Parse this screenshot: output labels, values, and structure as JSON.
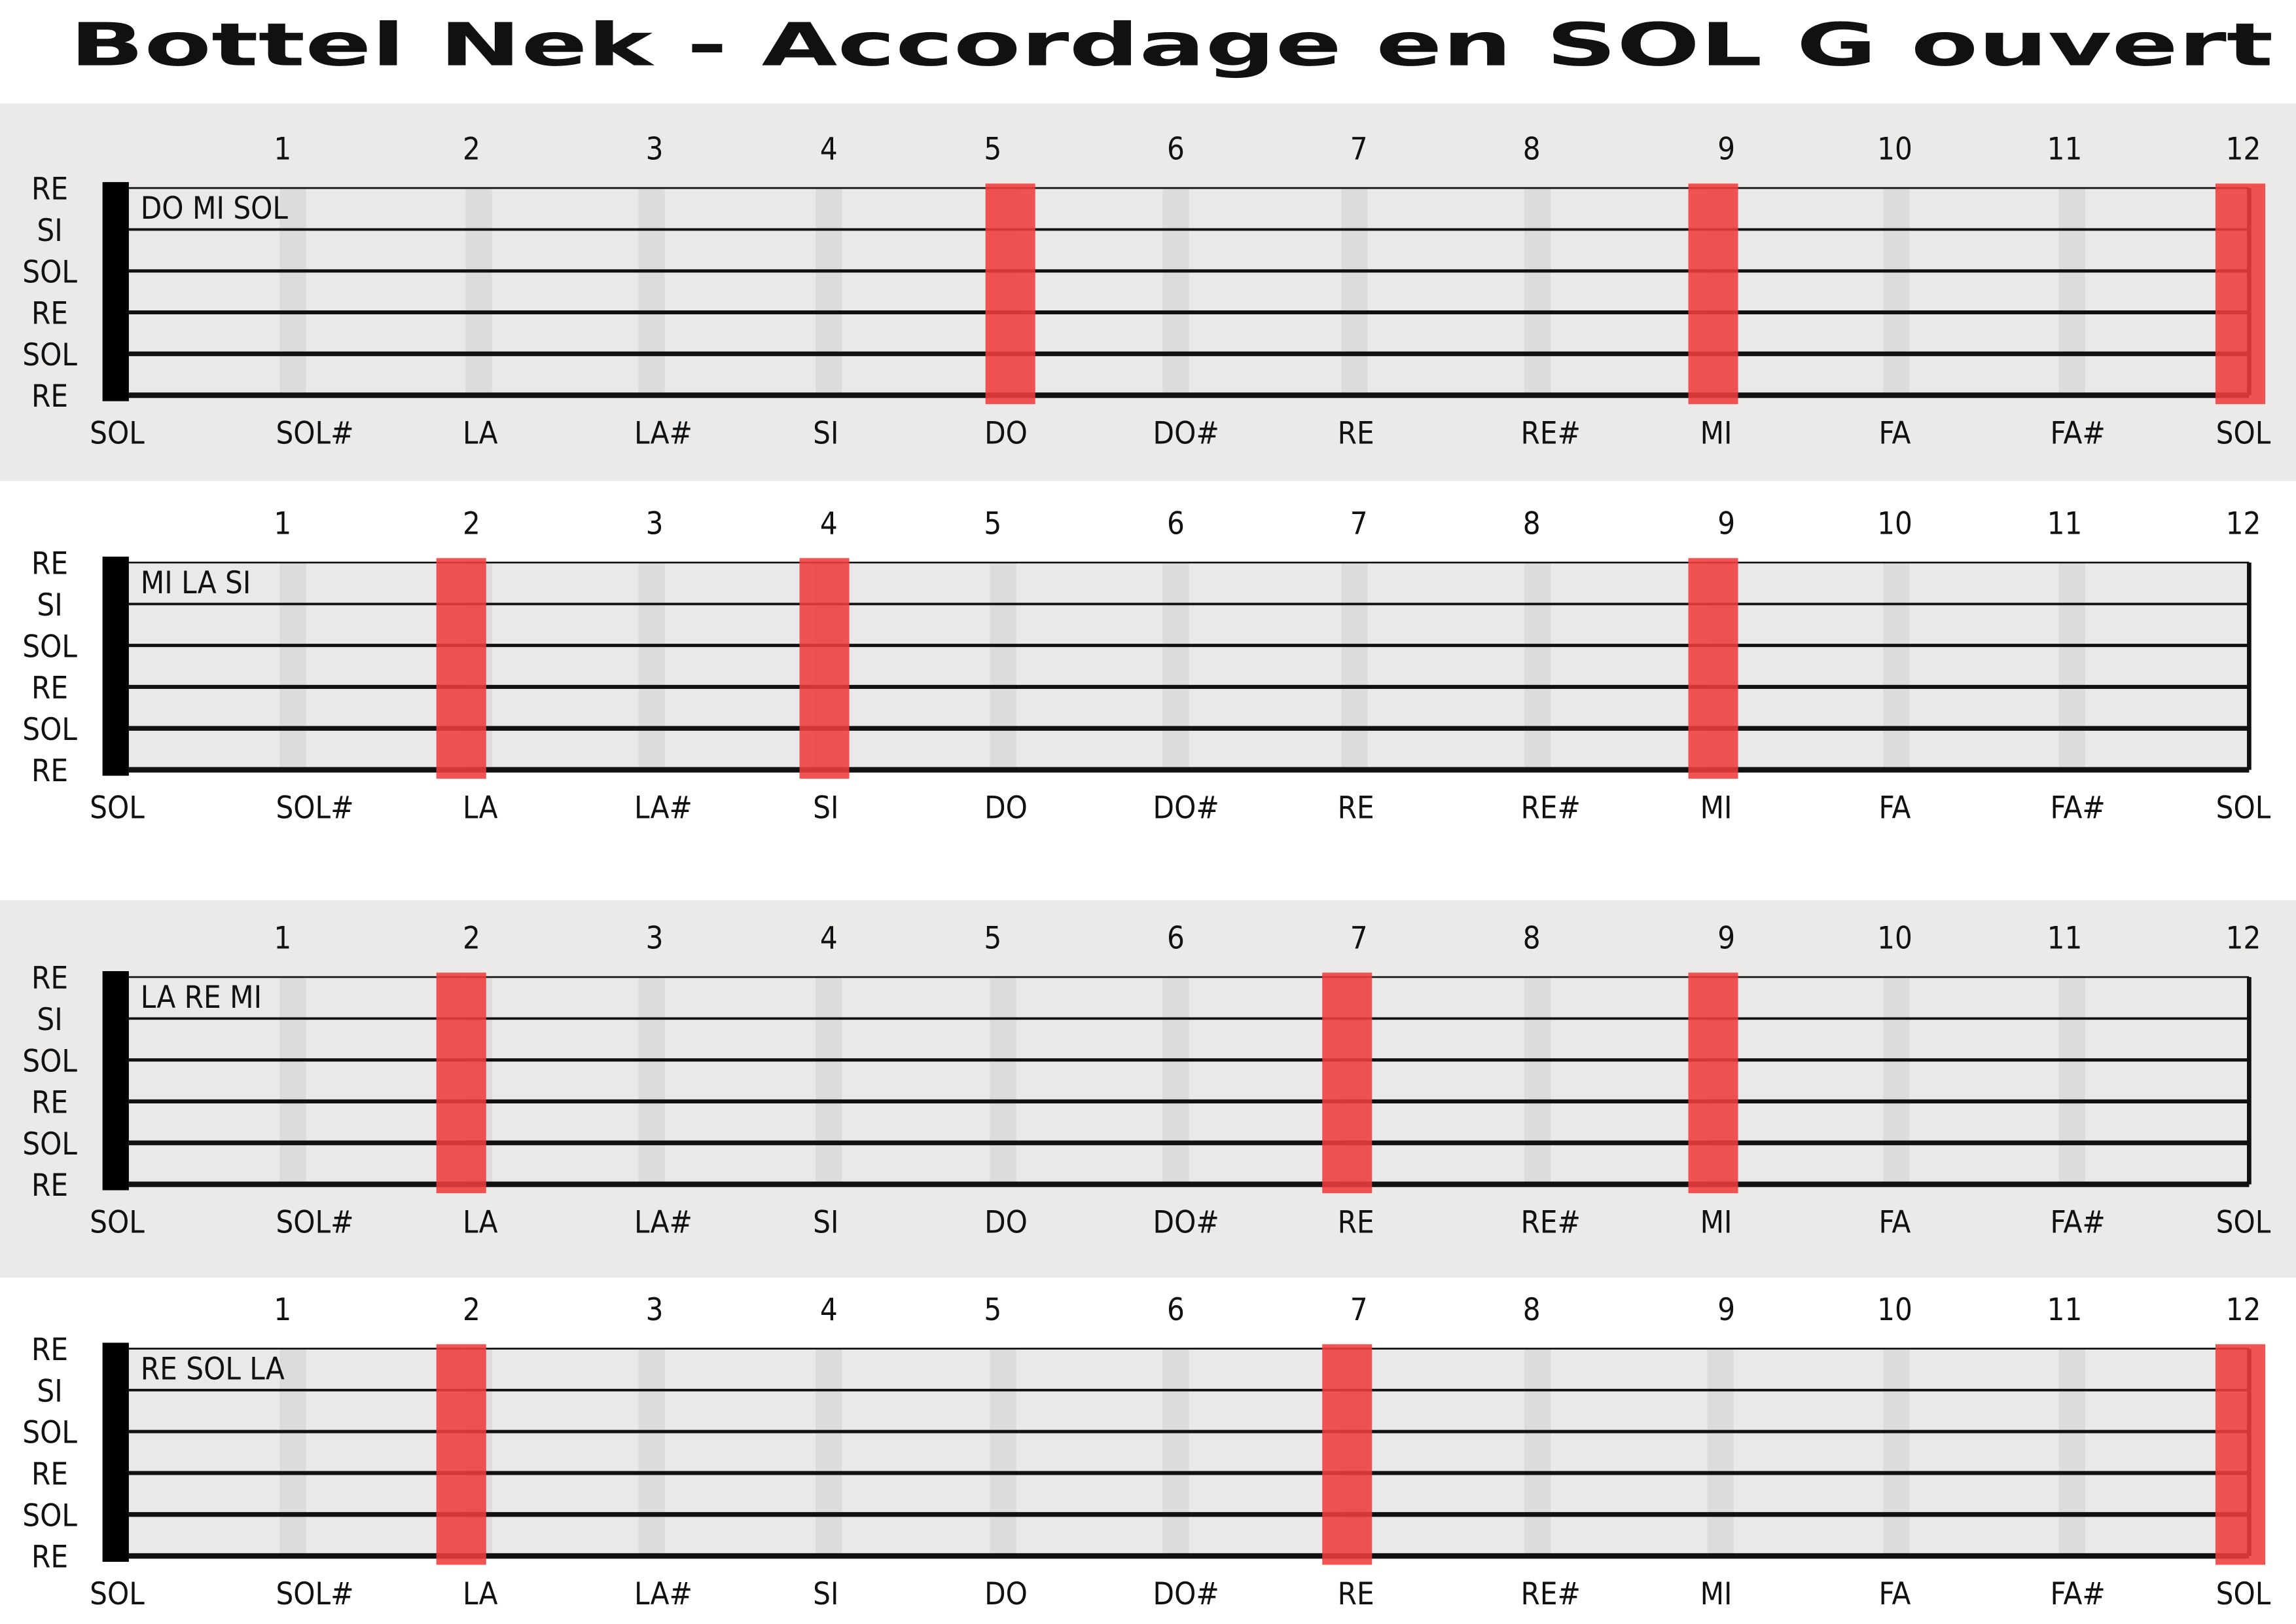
{
  "title": "Bottel Nek - Accordage en SOL G ouvert",
  "frets": [
    "1",
    "2",
    "3",
    "4",
    "5",
    "6",
    "7",
    "8",
    "9",
    "10",
    "11",
    "12"
  ],
  "strings": [
    "RE",
    "SI",
    "SOL",
    "RE",
    "SOL",
    "RE"
  ],
  "notes": [
    "SOL",
    "SOL#",
    "LA",
    "LA#",
    "SI",
    "DO",
    "DO#",
    "RE",
    "RE#",
    "MI",
    "FA",
    "FA#",
    "SOL"
  ],
  "panels": [
    {
      "label": "DO MI SOL",
      "highlight": [
        5,
        9,
        12
      ]
    },
    {
      "label": "MI LA SI",
      "highlight": [
        2,
        4,
        9
      ]
    },
    {
      "label": "LA RE MI",
      "highlight": [
        2,
        7,
        9
      ]
    },
    {
      "label": "RE SOL LA",
      "highlight": [
        2,
        7,
        12
      ]
    }
  ]
}
